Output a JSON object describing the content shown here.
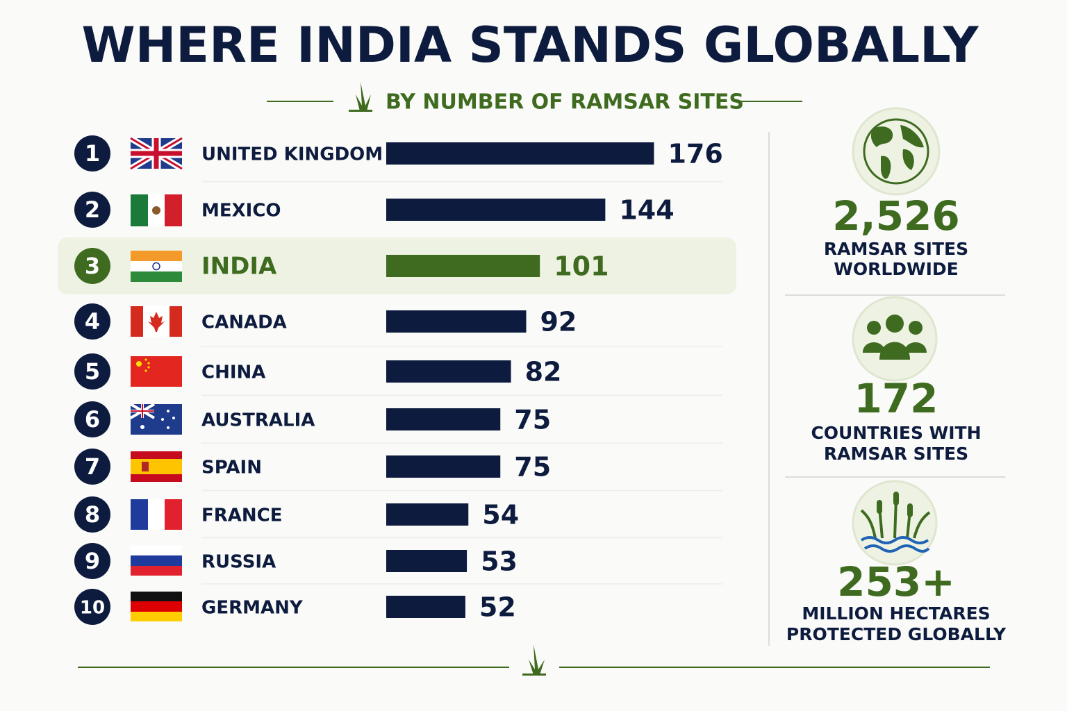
{
  "chart_data": {
    "type": "bar",
    "orientation": "horizontal",
    "title": "WHERE INDIA STANDS GLOBALLY",
    "subtitle": "BY NUMBER OF RAMSAR SITES",
    "ranks": [
      1,
      2,
      3,
      4,
      5,
      6,
      7,
      8,
      9,
      10
    ],
    "categories": [
      "UNITED KINGDOM",
      "MEXICO",
      "INDIA",
      "CANADA",
      "CHINA",
      "AUSTRALIA",
      "SPAIN",
      "FRANCE",
      "RUSSIA",
      "GERMANY"
    ],
    "values": [
      176,
      144,
      101,
      92,
      82,
      75,
      75,
      54,
      53,
      52
    ],
    "colors": [
      "#0d1b3e",
      "#0d1b3e",
      "#3e6b1f",
      "#0d1b3e",
      "#0d1b3e",
      "#0d1b3e",
      "#0d1b3e",
      "#0d1b3e",
      "#0d1b3e",
      "#0d1b3e"
    ]
  },
  "stats": [
    {
      "value": "2,526",
      "caption": [
        "RAMSAR SITES",
        "WORLDWIDE"
      ]
    },
    {
      "value": "172",
      "caption": [
        "COUNTRIES WITH",
        "RAMSAR SITES"
      ]
    },
    {
      "value": "253+",
      "caption": [
        "MILLION HECTARES",
        "PROTECTED GLOBALLY"
      ]
    }
  ]
}
